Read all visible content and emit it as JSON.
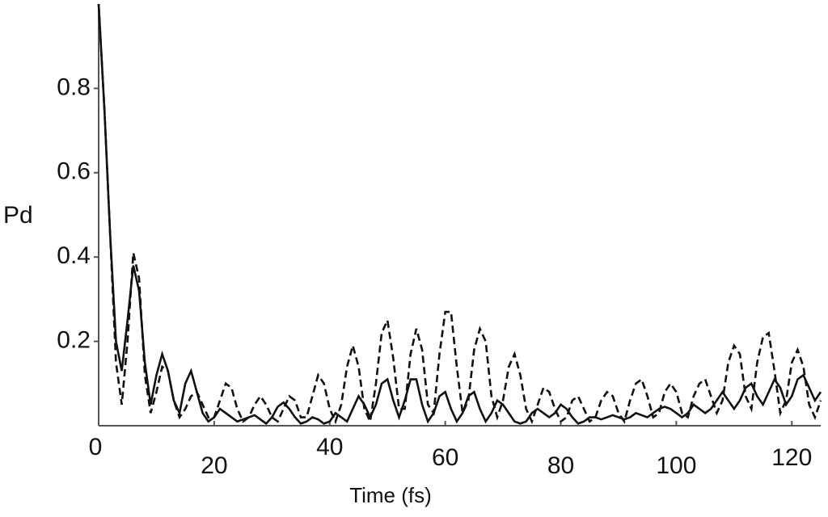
{
  "chart_data": {
    "type": "line",
    "x_label": "Time (fs)",
    "y_label": "Pd",
    "xlim": [
      0,
      125
    ],
    "ylim": [
      0,
      1
    ],
    "xticks": [
      0,
      20,
      40,
      60,
      80,
      100,
      120
    ],
    "yticks": [
      0.2,
      0.4,
      0.6,
      0.8
    ],
    "x": [
      0,
      1,
      2,
      3,
      4,
      5,
      6,
      7,
      8,
      9,
      10,
      11,
      12,
      13,
      14,
      15,
      16,
      17,
      18,
      19,
      20,
      21,
      22,
      23,
      24,
      25,
      26,
      27,
      28,
      29,
      30,
      31,
      32,
      33,
      34,
      35,
      36,
      37,
      38,
      39,
      40,
      41,
      42,
      43,
      44,
      45,
      46,
      47,
      48,
      49,
      50,
      51,
      52,
      53,
      54,
      55,
      56,
      57,
      58,
      59,
      60,
      61,
      62,
      63,
      64,
      65,
      66,
      67,
      68,
      69,
      70,
      71,
      72,
      73,
      74,
      75,
      76,
      77,
      78,
      79,
      80,
      81,
      82,
      83,
      84,
      85,
      86,
      87,
      88,
      89,
      90,
      91,
      92,
      93,
      94,
      95,
      96,
      97,
      98,
      99,
      100,
      101,
      102,
      103,
      104,
      105,
      106,
      107,
      108,
      109,
      110,
      111,
      112,
      113,
      114,
      115,
      116,
      117,
      118,
      119,
      120,
      121,
      122,
      123,
      124,
      125
    ],
    "series": [
      {
        "color": "#111111",
        "linestyle": "solid",
        "values": [
          1.0,
          0.75,
          0.45,
          0.2,
          0.13,
          0.25,
          0.38,
          0.32,
          0.15,
          0.05,
          0.12,
          0.17,
          0.13,
          0.06,
          0.03,
          0.1,
          0.13,
          0.08,
          0.03,
          0.01,
          0.02,
          0.04,
          0.03,
          0.02,
          0.01,
          0.015,
          0.02,
          0.025,
          0.015,
          0.005,
          0.02,
          0.045,
          0.055,
          0.04,
          0.02,
          0.005,
          0.01,
          0.02,
          0.015,
          0.005,
          0.01,
          0.03,
          0.02,
          0.01,
          0.04,
          0.07,
          0.05,
          0.02,
          0.05,
          0.1,
          0.11,
          0.06,
          0.02,
          0.06,
          0.11,
          0.11,
          0.05,
          0.01,
          0.03,
          0.07,
          0.08,
          0.04,
          0.01,
          0.03,
          0.07,
          0.08,
          0.04,
          0.01,
          0.03,
          0.06,
          0.05,
          0.03,
          0.01,
          0.005,
          0.01,
          0.03,
          0.04,
          0.03,
          0.02,
          0.03,
          0.05,
          0.04,
          0.02,
          0.005,
          0.01,
          0.02,
          0.02,
          0.015,
          0.02,
          0.025,
          0.02,
          0.015,
          0.02,
          0.03,
          0.025,
          0.02,
          0.03,
          0.04,
          0.045,
          0.04,
          0.03,
          0.02,
          0.03,
          0.05,
          0.04,
          0.03,
          0.04,
          0.06,
          0.08,
          0.06,
          0.04,
          0.06,
          0.09,
          0.1,
          0.07,
          0.05,
          0.08,
          0.11,
          0.09,
          0.05,
          0.07,
          0.11,
          0.12,
          0.09,
          0.06,
          0.08
        ]
      },
      {
        "color": "#111111",
        "linestyle": "dashed",
        "values": [
          1.0,
          0.75,
          0.45,
          0.15,
          0.05,
          0.2,
          0.41,
          0.35,
          0.12,
          0.03,
          0.08,
          0.14,
          0.13,
          0.06,
          0.02,
          0.04,
          0.07,
          0.08,
          0.05,
          0.02,
          0.02,
          0.06,
          0.1,
          0.09,
          0.04,
          0.01,
          0.02,
          0.05,
          0.07,
          0.05,
          0.02,
          0.01,
          0.04,
          0.07,
          0.06,
          0.02,
          0.02,
          0.07,
          0.12,
          0.1,
          0.04,
          0.01,
          0.05,
          0.14,
          0.19,
          0.14,
          0.04,
          0.01,
          0.1,
          0.22,
          0.25,
          0.16,
          0.04,
          0.04,
          0.17,
          0.23,
          0.18,
          0.05,
          0.03,
          0.17,
          0.27,
          0.27,
          0.14,
          0.03,
          0.06,
          0.18,
          0.23,
          0.2,
          0.07,
          0.02,
          0.06,
          0.14,
          0.17,
          0.12,
          0.04,
          0.01,
          0.05,
          0.09,
          0.08,
          0.04,
          0.01,
          0.02,
          0.06,
          0.07,
          0.04,
          0.01,
          0.02,
          0.06,
          0.08,
          0.07,
          0.03,
          0.01,
          0.06,
          0.1,
          0.11,
          0.07,
          0.02,
          0.03,
          0.08,
          0.1,
          0.08,
          0.03,
          0.02,
          0.07,
          0.1,
          0.11,
          0.07,
          0.03,
          0.06,
          0.15,
          0.19,
          0.17,
          0.07,
          0.04,
          0.15,
          0.21,
          0.22,
          0.13,
          0.03,
          0.06,
          0.15,
          0.18,
          0.14,
          0.05,
          0.02,
          0.06
        ]
      }
    ]
  }
}
